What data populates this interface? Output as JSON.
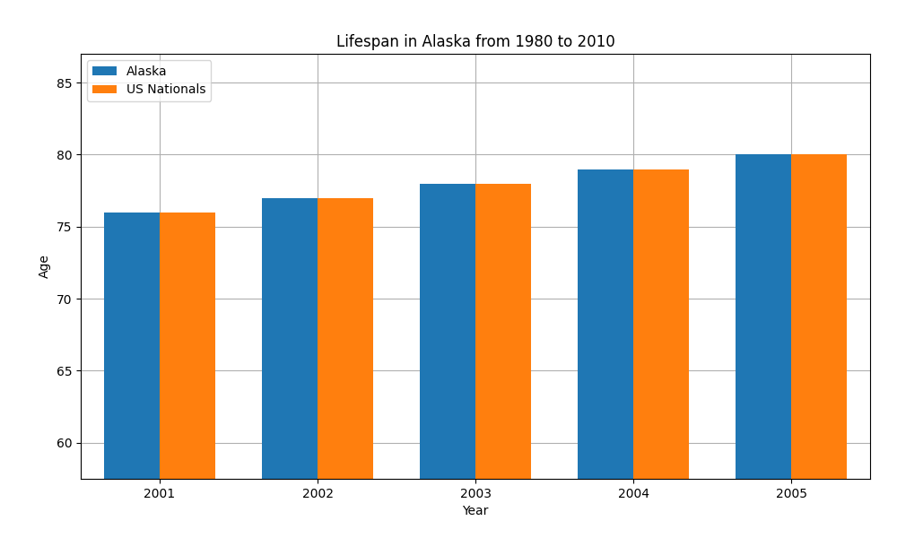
{
  "chart_data": {
    "type": "bar",
    "title": "Lifespan in Alaska from 1980 to 2010",
    "x_label": "Year",
    "y_label": "Age",
    "categories": [
      "2001",
      "2002",
      "2003",
      "2004",
      "2005"
    ],
    "series": [
      {
        "name": "Alaska",
        "values": [
          76,
          77,
          78,
          79,
          80
        ]
      },
      {
        "name": "US Nationals",
        "values": [
          76,
          77,
          78,
          79,
          80
        ]
      }
    ],
    "ylim": [
      57.5,
      87
    ],
    "yticks": [
      60,
      65,
      70,
      75,
      80,
      85
    ],
    "grid": true,
    "legend": "upper left"
  }
}
